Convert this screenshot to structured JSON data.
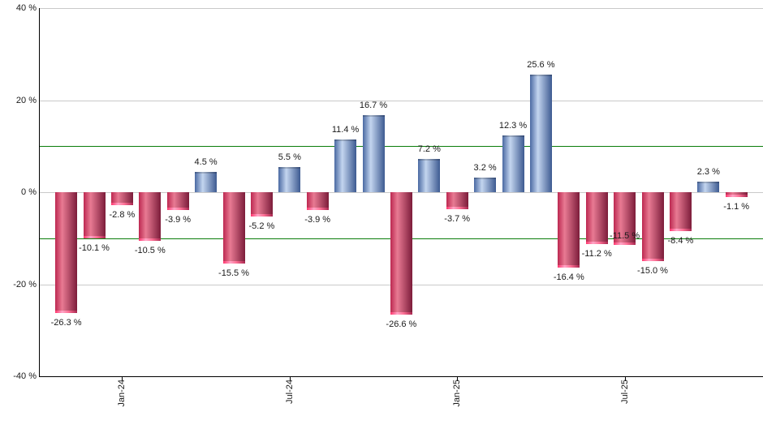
{
  "chart_data": {
    "type": "bar",
    "title": "",
    "xlabel": "",
    "ylabel": "",
    "ylim": [
      -40,
      40
    ],
    "grid": true,
    "y_ticks": [
      {
        "value": 40,
        "label": "40 %"
      },
      {
        "value": 20,
        "label": "20 %"
      },
      {
        "value": 0,
        "label": "0 %"
      },
      {
        "value": -20,
        "label": "-20 %"
      },
      {
        "value": -40,
        "label": "-40 %"
      }
    ],
    "x_ticks": [
      {
        "label": "Jan-24",
        "bar_index": 2
      },
      {
        "label": "Jul-24",
        "bar_index": 8
      },
      {
        "label": "Jan-25",
        "bar_index": 14
      },
      {
        "label": "Jul-25",
        "bar_index": 20
      }
    ],
    "reference_lines": [
      10,
      -10
    ],
    "values": [
      -26.3,
      -10.1,
      -2.8,
      -10.5,
      -3.9,
      4.5,
      -15.5,
      -5.2,
      5.5,
      -3.9,
      11.4,
      16.7,
      -26.6,
      7.2,
      -3.7,
      3.2,
      12.3,
      25.6,
      -16.4,
      -11.2,
      -11.5,
      -15.0,
      -8.4,
      2.3,
      -1.1
    ],
    "value_labels": [
      "-26.3 %",
      "-10.1 %",
      "-2.8 %",
      "-10.5 %",
      "-3.9 %",
      "4.5 %",
      "-15.5 %",
      "-5.2 %",
      "5.5 %",
      "-3.9 %",
      "11.4 %",
      "16.7 %",
      "-26.6 %",
      "7.2 %",
      "-3.7 %",
      "3.2 %",
      "12.3 %",
      "25.6 %",
      "-16.4 %",
      "-11.2 %",
      "-11.5 %",
      "-15.0 %",
      "-8.4 %",
      "2.3 %",
      "-1.1 %"
    ],
    "label_dy_overrides": {
      "20": -17
    },
    "colors": {
      "positive_edge": "#4a69a2",
      "positive_light": "#c3d5ef",
      "positive_dark": "#3d5a91",
      "negative_edge": "#bc2850",
      "negative_light": "#e87a93",
      "negative_dark": "#7c1c3a",
      "grid": "#c9c9c9",
      "axis": "#000000",
      "reference": "#0a7d0a",
      "text": "#1a1a1a",
      "background": "#ffffff"
    }
  }
}
